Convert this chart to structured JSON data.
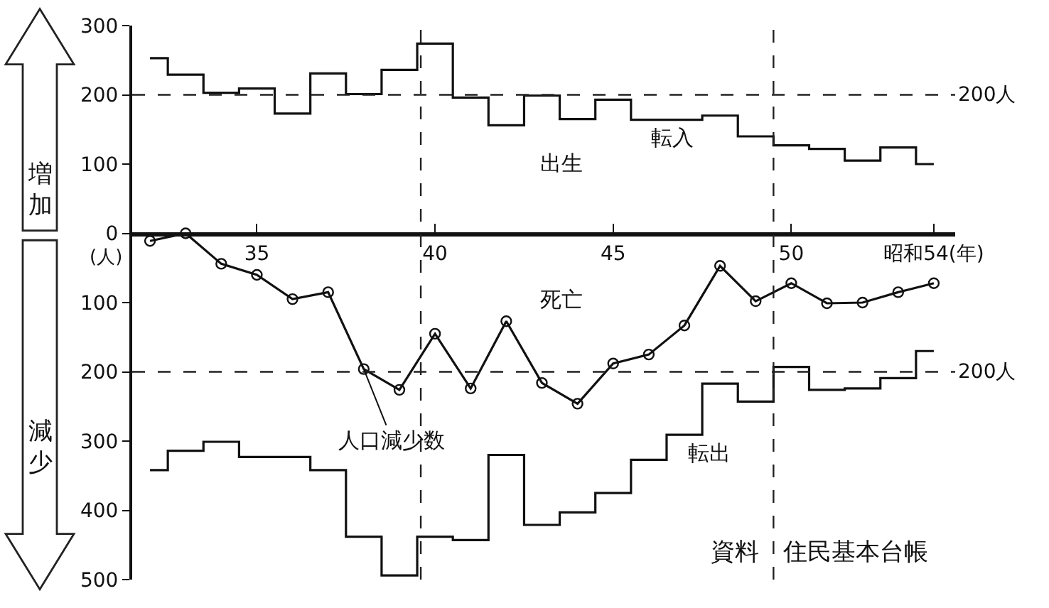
{
  "chart_data": {
    "type": "step",
    "x": [
      32,
      33,
      34,
      35,
      36,
      37,
      38,
      39,
      40,
      41,
      42,
      43,
      44,
      45,
      46,
      47,
      48,
      49,
      50,
      51,
      52,
      53,
      54
    ],
    "series": [
      {
        "name": "転入",
        "color": "#111111",
        "marker": "none",
        "values": [
          253,
          229,
          203,
          209,
          173,
          231,
          201,
          236,
          274,
          196,
          156,
          199,
          165,
          193,
          164,
          164,
          170,
          140,
          127,
          122,
          105,
          124,
          100
        ]
      },
      {
        "name": "転出",
        "color": "#111111",
        "marker": "none",
        "values": [
          -342,
          -314,
          -301,
          -323,
          -323,
          -342,
          -438,
          -494,
          -438,
          -443,
          -320,
          -421,
          -403,
          -375,
          -327,
          -291,
          -217,
          -243,
          -193,
          -226,
          -224,
          -209,
          -170
        ]
      },
      {
        "name": "人口減少数",
        "type": "line",
        "color": "#111111",
        "marker": "circle",
        "values": [
          -11,
          0,
          -44,
          -60,
          -95,
          -85,
          -196,
          -226,
          -145,
          -224,
          -127,
          -216,
          -246,
          -188,
          -175,
          -133,
          -47,
          -98,
          -72,
          -101,
          -100,
          -85,
          -72
        ]
      }
    ],
    "xlim": [
      31.5,
      54.6
    ],
    "xticks": [
      35,
      40,
      45,
      50,
      {
        "value": 54,
        "label": "昭和54(年)"
      }
    ],
    "ylim": [
      -500,
      300
    ],
    "yticks": [
      300,
      200,
      100,
      0,
      {
        "value": -100,
        "label": "100"
      },
      {
        "value": -200,
        "label": "200"
      },
      {
        "value": -300,
        "label": "300"
      },
      {
        "value": -400,
        "label": "400"
      },
      {
        "value": -500,
        "label": "500"
      }
    ],
    "ylabel": "(人)",
    "ref_lines": [
      {
        "axis": "y",
        "value": 200,
        "label": "200人",
        "line_style": "dashed"
      },
      {
        "axis": "y",
        "value": -200,
        "label": "200人",
        "line_style": "dashed"
      },
      {
        "axis": "x",
        "value": 39.6,
        "line_style": "dashed"
      },
      {
        "axis": "x",
        "value": 49.5,
        "line_style": "dashed"
      }
    ],
    "annotations": [
      "出生",
      "死亡",
      "資料　住民基本台帳",
      "増加",
      "減少"
    ],
    "grid": false,
    "legend": false
  }
}
